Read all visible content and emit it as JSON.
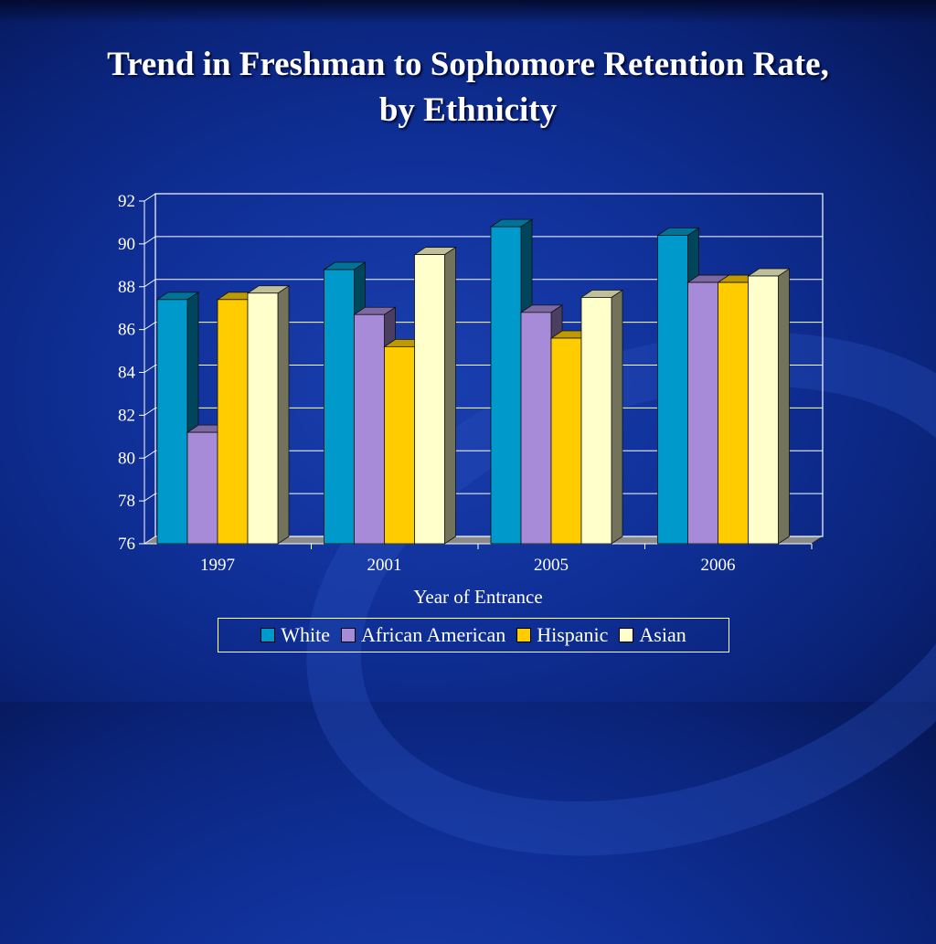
{
  "slide": {
    "title_line1": "Trend in Freshman to Sophomore Retention Rate,",
    "title_line2": "by Ethnicity"
  },
  "chart_data": {
    "type": "bar",
    "title": "",
    "xlabel": "Year of Entrance",
    "ylabel": "",
    "categories": [
      "1997",
      "2001",
      "2005",
      "2006"
    ],
    "ylim": [
      76,
      92
    ],
    "yticks": [
      76,
      78,
      80,
      82,
      84,
      86,
      88,
      90,
      92
    ],
    "grid": true,
    "legend_position": "bottom",
    "series": [
      {
        "name": "White",
        "color": "#0099cc",
        "values": [
          87.4,
          88.8,
          90.8,
          90.4
        ]
      },
      {
        "name": "African American",
        "color": "#a78bd8",
        "values": [
          81.2,
          86.7,
          86.8,
          88.2
        ]
      },
      {
        "name": "Hispanic",
        "color": "#ffcc00",
        "values": [
          87.4,
          85.2,
          85.6,
          88.2
        ]
      },
      {
        "name": "Asian",
        "color": "#ffffcc",
        "values": [
          87.7,
          89.5,
          87.5,
          88.5
        ]
      }
    ]
  }
}
